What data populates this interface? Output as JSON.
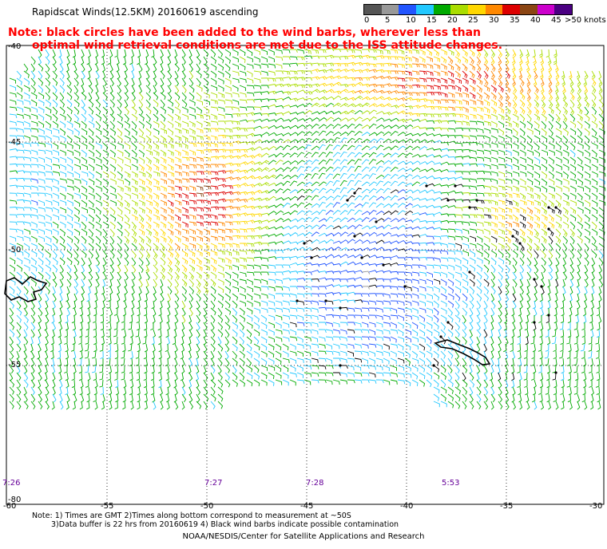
{
  "title": "Rapidscat Winds(12.5KM) 20160619 ascending",
  "note": {
    "line1": "Note: black circles have been added to the wind barbs, wherever less than",
    "line2": "optimal wind retrieval conditions are met due to the ISS attitude changes."
  },
  "color_scale": {
    "unit": ">50 knots",
    "labels": [
      "0",
      "5",
      "10",
      "15",
      "20",
      "25",
      "30",
      "35",
      "40",
      "45"
    ],
    "colors": [
      "#555555",
      "#999999",
      "#2255ff",
      "#22c8ff",
      "#00aa00",
      "#aadd00",
      "#ffd700",
      "#ff8800",
      "#dd0000",
      "#8b4513",
      "#cc00cc",
      "#4b0082"
    ]
  },
  "axes": {
    "lat_labels": [
      "-40",
      "-45",
      "-50",
      "-55",
      "-80"
    ],
    "lon_labels": [
      "-60",
      "-55",
      "-50",
      "-45",
      "-40",
      "-35",
      "-30"
    ]
  },
  "times": [
    "7:26",
    "7:27",
    "7:28",
    "5:53"
  ],
  "footer": {
    "line1": "Note: 1) Times are GMT 2)Times along bottom correspond to measurement at ~50S",
    "line2": "3)Data buffer is 22 hrs from 20160619 4) Black wind barbs indicate possible contamination",
    "credit": "NOAA/NESDIS/Center for Satellite Applications and Research"
  }
}
